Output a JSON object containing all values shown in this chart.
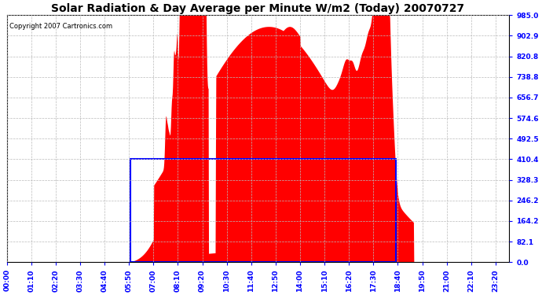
{
  "title": "Solar Radiation & Day Average per Minute W/m2 (Today) 20070727",
  "copyright": "Copyright 2007 Cartronics.com",
  "y_min": 0.0,
  "y_max": 985.0,
  "ytick_labels": [
    "985.0",
    "902.9",
    "820.8",
    "738.8",
    "656.7",
    "574.6",
    "492.5",
    "410.4",
    "328.3",
    "246.2",
    "164.2",
    "82.1",
    "0.0"
  ],
  "ytick_values": [
    985.0,
    902.9,
    820.8,
    738.8,
    656.7,
    574.6,
    492.5,
    410.4,
    328.3,
    246.2,
    164.2,
    82.1,
    0.0
  ],
  "fill_color": "#ff0000",
  "avg_line_color": "blue",
  "avg_value": 410.4,
  "avg_rect_start_min": 355,
  "avg_rect_end_min": 1115,
  "sunrise_min": 340,
  "sunset_min": 1165,
  "bg_color": "white",
  "grid_color": "#bbbbbb",
  "x_min": 0,
  "x_max": 1439,
  "xtick_step": 70,
  "title_fontsize": 10,
  "label_fontsize": 6.5,
  "copyright_fontsize": 6
}
